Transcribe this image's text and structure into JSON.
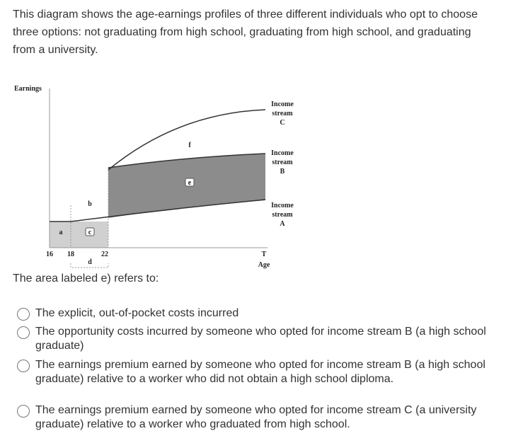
{
  "intro": "This diagram shows the age-earnings profiles of three different individuals who opt to choose three options: not graduating from high school, graduating from high school, and graduating from a university.",
  "diagram": {
    "y_axis_label": "Earnings",
    "x_axis_label": "Age",
    "x_ticks": [
      "16",
      "18",
      "22",
      "T"
    ],
    "streams": [
      {
        "label": "Income stream C",
        "name": "Income stream",
        "letter": "C"
      },
      {
        "label": "Income stream B",
        "name": "Income stream",
        "letter": "B"
      },
      {
        "label": "Income stream A",
        "name": "Income stream",
        "letter": "A"
      }
    ],
    "regions": {
      "a": "a",
      "b": "b",
      "c": "c",
      "d": "d",
      "e": "e",
      "f": "f"
    }
  },
  "question": "The area labeled e) refers to:",
  "options": [
    "The explicit, out-of-pocket costs incurred",
    "The opportunity costs incurred by someone who opted for income stream B (a high school graduate)",
    "The earnings premium earned by someone who opted for income stream B (a high school graduate) relative to a worker who did not obtain a high school diploma.",
    "The earnings premium earned by someone who opted for income stream C (a university graduate) relative to a worker who graduated from high school."
  ]
}
